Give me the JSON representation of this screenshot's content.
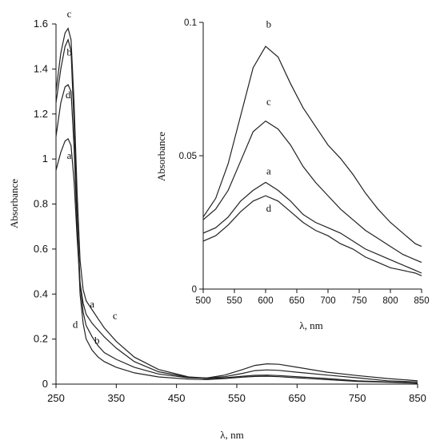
{
  "chart_data": [
    {
      "id": "main",
      "type": "line",
      "title": "",
      "xlabel": "λ, nm",
      "ylabel": "Absorbance",
      "xlim": [
        250,
        850
      ],
      "ylim": [
        0,
        1.6
      ],
      "xticks": [
        250,
        350,
        450,
        550,
        650,
        750,
        850
      ],
      "yticks": [
        0,
        0.2,
        0.4,
        0.6,
        0.8,
        1,
        1.2,
        1.4,
        1.6
      ],
      "ytick_labels": [
        "0",
        "0.2",
        "0.4",
        "0.6",
        "0.8",
        "1",
        "1.2",
        "1.4",
        "1.6"
      ],
      "grid": false,
      "legend": "none",
      "series": [
        {
          "name": "a",
          "x": [
            250,
            258,
            265,
            270,
            275,
            280,
            285,
            290,
            295,
            300,
            310,
            320,
            330,
            350,
            380,
            420,
            470,
            500,
            530,
            560,
            580,
            600,
            620,
            650,
            700,
            750,
            800,
            850
          ],
          "y": [
            0.95,
            1.03,
            1.08,
            1.09,
            1.06,
            0.9,
            0.65,
            0.45,
            0.36,
            0.31,
            0.27,
            0.24,
            0.21,
            0.16,
            0.1,
            0.055,
            0.03,
            0.025,
            0.028,
            0.035,
            0.039,
            0.04,
            0.038,
            0.033,
            0.025,
            0.015,
            0.01,
            0.005
          ]
        },
        {
          "name": "b",
          "x": [
            250,
            258,
            265,
            270,
            275,
            280,
            285,
            290,
            295,
            300,
            310,
            320,
            330,
            350,
            380,
            420,
            470,
            500,
            530,
            560,
            580,
            600,
            620,
            650,
            700,
            750,
            800,
            850
          ],
          "y": [
            1.25,
            1.4,
            1.5,
            1.53,
            1.48,
            1.15,
            0.75,
            0.45,
            0.32,
            0.26,
            0.21,
            0.17,
            0.14,
            0.11,
            0.075,
            0.045,
            0.028,
            0.027,
            0.04,
            0.065,
            0.083,
            0.09,
            0.088,
            0.075,
            0.053,
            0.038,
            0.025,
            0.015
          ]
        },
        {
          "name": "c",
          "x": [
            250,
            258,
            265,
            270,
            275,
            280,
            285,
            290,
            295,
            300,
            310,
            320,
            330,
            350,
            380,
            420,
            470,
            500,
            530,
            560,
            580,
            600,
            620,
            650,
            700,
            750,
            800,
            850
          ],
          "y": [
            1.3,
            1.47,
            1.56,
            1.58,
            1.53,
            1.25,
            0.85,
            0.55,
            0.42,
            0.37,
            0.33,
            0.29,
            0.25,
            0.19,
            0.12,
            0.065,
            0.032,
            0.027,
            0.033,
            0.048,
            0.06,
            0.063,
            0.061,
            0.053,
            0.04,
            0.028,
            0.015,
            0.01
          ]
        },
        {
          "name": "d",
          "x": [
            250,
            258,
            265,
            270,
            275,
            280,
            285,
            290,
            295,
            300,
            310,
            320,
            330,
            350,
            380,
            420,
            470,
            500,
            530,
            560,
            580,
            600,
            620,
            650,
            700,
            750,
            800,
            850
          ],
          "y": [
            1.1,
            1.25,
            1.32,
            1.33,
            1.3,
            1.05,
            0.7,
            0.4,
            0.27,
            0.2,
            0.15,
            0.12,
            0.1,
            0.075,
            0.05,
            0.032,
            0.022,
            0.02,
            0.025,
            0.031,
            0.034,
            0.035,
            0.033,
            0.028,
            0.02,
            0.012,
            0.008,
            0.004
          ]
        }
      ],
      "curve_labels": [
        {
          "series": "c",
          "text": "c",
          "x": 272,
          "y": 1.63
        },
        {
          "series": "b",
          "text": "b",
          "x": 272,
          "y": 1.46
        },
        {
          "series": "d",
          "text": "d",
          "x": 270,
          "y": 1.27
        },
        {
          "series": "a",
          "text": "a",
          "x": 272,
          "y": 1.0
        },
        {
          "series": "a",
          "text": "a",
          "x": 310,
          "y": 0.34
        },
        {
          "series": "c",
          "text": "c",
          "x": 348,
          "y": 0.29
        },
        {
          "series": "d",
          "text": "d",
          "x": 282,
          "y": 0.25
        },
        {
          "series": "b",
          "text": "b",
          "x": 318,
          "y": 0.18
        }
      ]
    },
    {
      "id": "inset",
      "type": "line",
      "title": "",
      "xlabel": "λ, nm",
      "ylabel": "Absorbance",
      "xlim": [
        500,
        850
      ],
      "ylim": [
        0,
        0.1
      ],
      "xticks": [
        500,
        550,
        600,
        650,
        700,
        750,
        800,
        850
      ],
      "yticks": [
        0,
        0.05,
        0.1
      ],
      "ytick_labels": [
        "0",
        "0.05",
        "0.1"
      ],
      "grid": false,
      "legend": "none",
      "series": [
        {
          "name": "a",
          "x": [
            500,
            520,
            540,
            560,
            580,
            600,
            620,
            640,
            660,
            680,
            700,
            720,
            740,
            760,
            780,
            800,
            820,
            840,
            850
          ],
          "y": [
            0.021,
            0.023,
            0.027,
            0.033,
            0.037,
            0.04,
            0.037,
            0.033,
            0.028,
            0.025,
            0.023,
            0.021,
            0.018,
            0.015,
            0.013,
            0.011,
            0.009,
            0.007,
            0.006
          ]
        },
        {
          "name": "b",
          "x": [
            500,
            520,
            540,
            560,
            580,
            600,
            620,
            640,
            660,
            680,
            700,
            720,
            740,
            760,
            780,
            800,
            820,
            840,
            850
          ],
          "y": [
            0.027,
            0.034,
            0.047,
            0.065,
            0.083,
            0.091,
            0.087,
            0.077,
            0.068,
            0.061,
            0.054,
            0.049,
            0.043,
            0.036,
            0.03,
            0.025,
            0.021,
            0.017,
            0.016
          ]
        },
        {
          "name": "c",
          "x": [
            500,
            520,
            540,
            560,
            580,
            600,
            620,
            640,
            660,
            680,
            700,
            720,
            740,
            760,
            780,
            800,
            820,
            840,
            850
          ],
          "y": [
            0.026,
            0.03,
            0.037,
            0.048,
            0.059,
            0.063,
            0.06,
            0.054,
            0.046,
            0.04,
            0.035,
            0.03,
            0.026,
            0.022,
            0.019,
            0.016,
            0.013,
            0.011,
            0.01
          ]
        },
        {
          "name": "d",
          "x": [
            500,
            520,
            540,
            560,
            580,
            600,
            620,
            640,
            660,
            680,
            700,
            720,
            740,
            760,
            780,
            800,
            820,
            840,
            850
          ],
          "y": [
            0.018,
            0.02,
            0.024,
            0.029,
            0.033,
            0.035,
            0.033,
            0.029,
            0.025,
            0.022,
            0.02,
            0.017,
            0.015,
            0.012,
            0.01,
            0.008,
            0.007,
            0.006,
            0.005
          ]
        }
      ],
      "curve_labels": [
        {
          "series": "b",
          "text": "b",
          "x": 605,
          "y": 0.098
        },
        {
          "series": "c",
          "text": "c",
          "x": 605,
          "y": 0.069
        },
        {
          "series": "a",
          "text": "a",
          "x": 605,
          "y": 0.043
        },
        {
          "series": "d",
          "text": "d",
          "x": 605,
          "y": 0.029
        }
      ]
    }
  ]
}
